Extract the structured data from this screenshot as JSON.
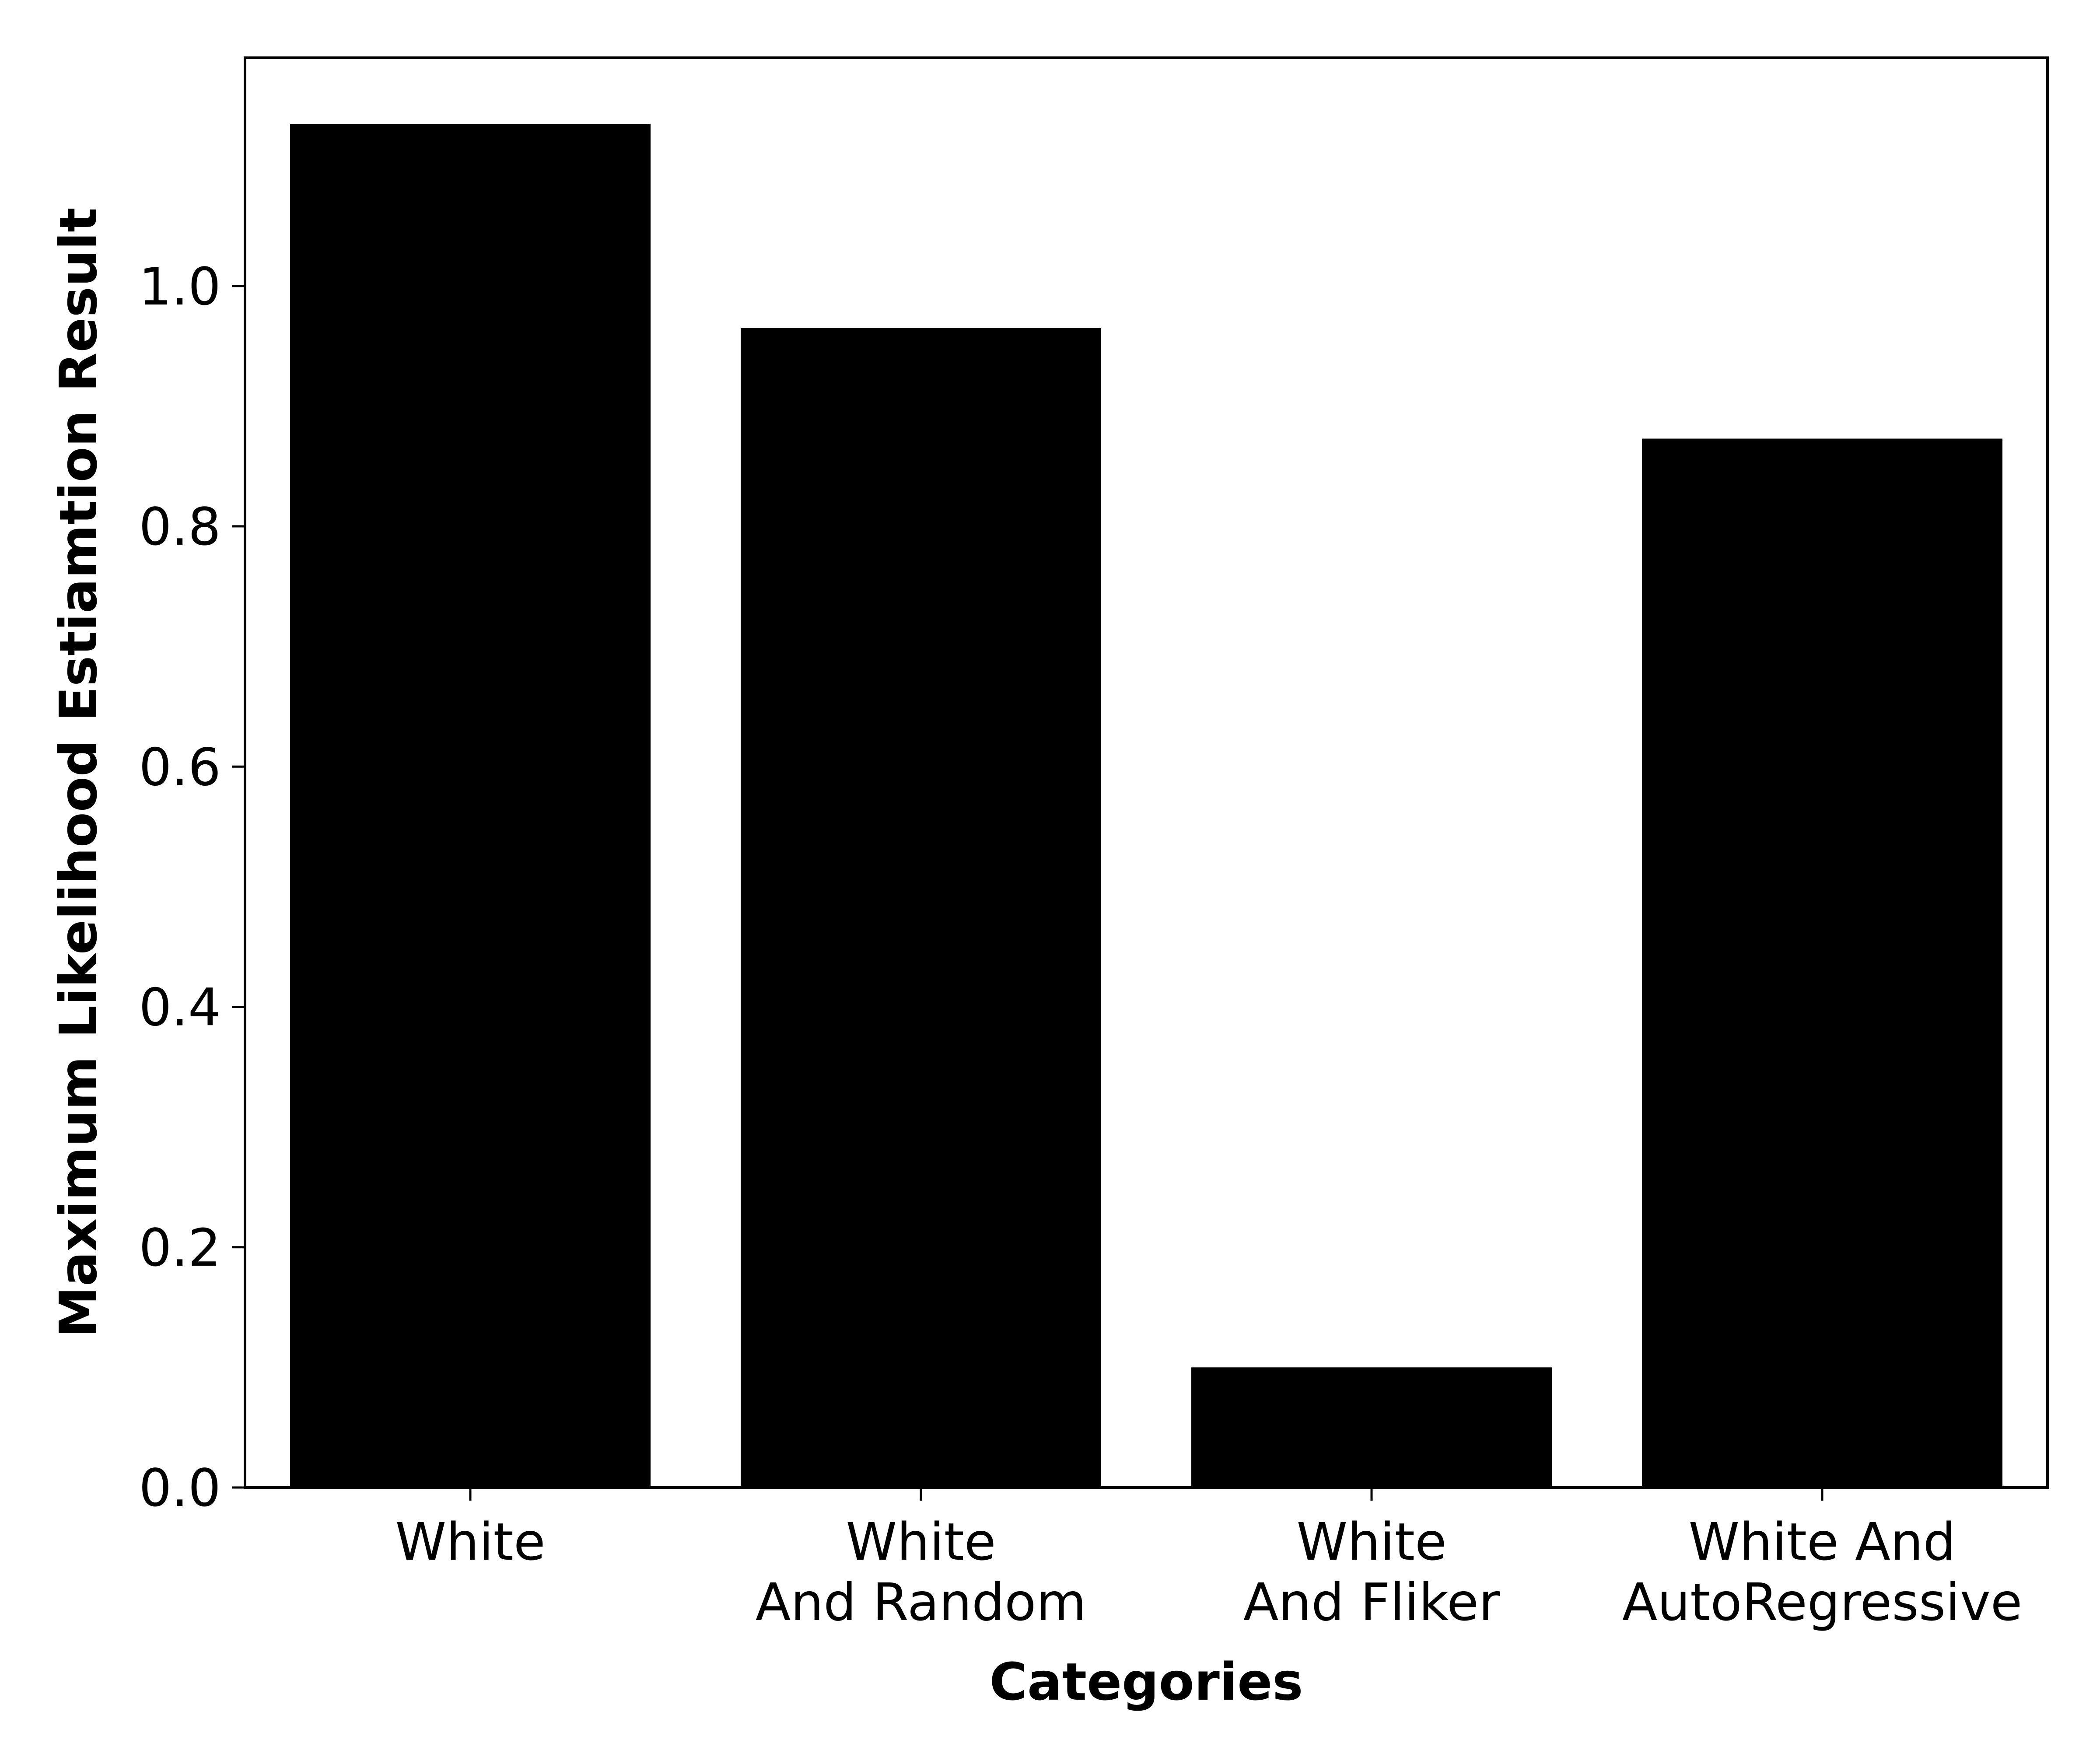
{
  "chart_data": {
    "type": "bar",
    "categories": [
      [
        "White"
      ],
      [
        "White",
        "And Random"
      ],
      [
        "White",
        "And Fliker"
      ],
      [
        "White And",
        "AutoRegressive"
      ]
    ],
    "values": [
      1.135,
      0.965,
      0.1,
      0.873
    ],
    "title": "",
    "xlabel": "Categories",
    "ylabel": "Maximum Likelihood Estiamtion Result",
    "ylim": [
      0,
      1.19
    ],
    "yticks": [
      0.0,
      0.2,
      0.4,
      0.6,
      0.8,
      1.0
    ],
    "ytick_labels": [
      "0.0",
      "0.2",
      "0.4",
      "0.6",
      "0.8",
      "1.0"
    ],
    "bar_color": "#000000",
    "grid": false,
    "legend": false
  }
}
